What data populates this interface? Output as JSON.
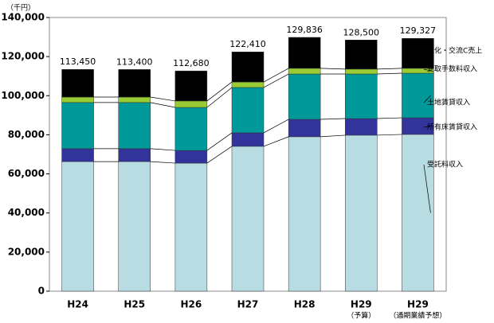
{
  "chart_data": {
    "type": "stacked_bar",
    "y_unit_label": "（千円）",
    "categories": [
      "H24",
      "H25",
      "H26",
      "H27",
      "H28",
      "H29",
      "H29"
    ],
    "category_notes": [
      null,
      null,
      null,
      null,
      null,
      "（予算）",
      "（通期業績予想）"
    ],
    "series": [
      {
        "name": "受託料収入",
        "color": "#b7dde3",
        "values": [
          66300,
          66300,
          65500,
          74100,
          79000,
          79800,
          80200
        ]
      },
      {
        "name": "所有床賃貸収入",
        "color": "#33339c",
        "values": [
          6600,
          6600,
          6500,
          6900,
          8900,
          8500,
          8500
        ]
      },
      {
        "name": "土地賃貸収入",
        "color": "#009999",
        "values": [
          23600,
          23600,
          22000,
          23200,
          23200,
          22800,
          22800
        ]
      },
      {
        "name": "受取手数料収入",
        "color": "#99cc33",
        "values": [
          2800,
          2800,
          3300,
          2800,
          2900,
          2500,
          2500
        ]
      },
      {
        "name": "文化・交流C売上",
        "color": "#000000",
        "values": [
          14150,
          14100,
          15380,
          15410,
          15836,
          14900,
          15327
        ]
      }
    ],
    "totals": {
      "values": [
        113450,
        113400,
        112680,
        122410,
        129836,
        128500,
        129327
      ],
      "value_labels": [
        "113,450",
        "113,400",
        "112,680",
        "122,410",
        "129,836",
        "128,500",
        "129,327"
      ]
    },
    "ylim": [
      0,
      140000
    ],
    "yticks": [
      0,
      {
        "value": 20000,
        "label": "20,000"
      },
      {
        "value": 40000,
        "label": "40,000"
      },
      {
        "value": 60000,
        "label": "60,000"
      },
      {
        "value": 80000,
        "label": "80,000"
      },
      {
        "value": 100000,
        "label": "100,000"
      },
      {
        "value": 120000,
        "label": "120,000"
      },
      {
        "value": 140000,
        "label": "140,000"
      }
    ],
    "grid": false
  }
}
